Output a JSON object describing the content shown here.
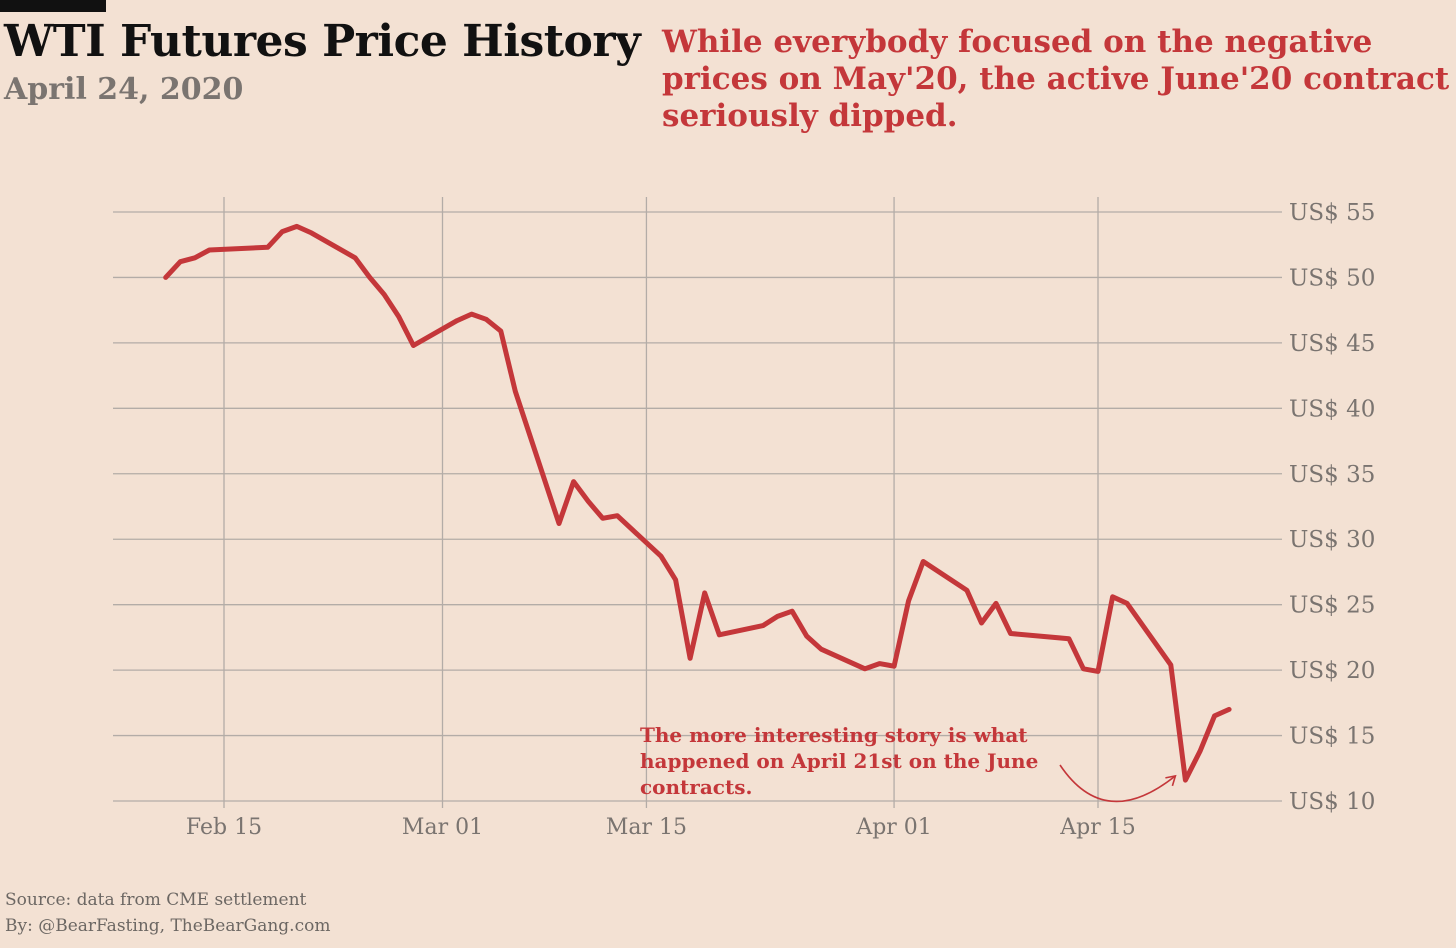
{
  "header": {
    "title": "WTI Futures Price History",
    "subtitle": "April 24, 2020",
    "headline": "While everybody focused on the negative prices on May'20, the active June'20 contract seriously dipped."
  },
  "footer": {
    "source": "Source: data from CME settlement",
    "byline": "By: @BearFasting, TheBearGang.com"
  },
  "colors": {
    "background": "#f3e1d3",
    "line": "#c4373a",
    "grid": "#b3aca7",
    "tick_text": "#7a7470"
  },
  "chart_data": {
    "type": "line",
    "title": "WTI Futures Price History",
    "subtitle": "April 24, 2020",
    "xlabel": "",
    "ylabel": "",
    "ylim": [
      10,
      55
    ],
    "xlim": [
      "2020-02-10",
      "2020-04-27"
    ],
    "y_axis_position": "right",
    "grid": true,
    "y_ticks": [
      {
        "value": 10,
        "label": "US$ 10"
      },
      {
        "value": 15,
        "label": "US$ 15"
      },
      {
        "value": 20,
        "label": "US$ 20"
      },
      {
        "value": 25,
        "label": "US$ 25"
      },
      {
        "value": 30,
        "label": "US$ 30"
      },
      {
        "value": 35,
        "label": "US$ 35"
      },
      {
        "value": 40,
        "label": "US$ 40"
      },
      {
        "value": 45,
        "label": "US$ 45"
      },
      {
        "value": 50,
        "label": "US$ 50"
      },
      {
        "value": 55,
        "label": "US$ 55"
      }
    ],
    "x_ticks": [
      {
        "value": "2020-02-15",
        "label": "Feb 15"
      },
      {
        "value": "2020-03-01",
        "label": "Mar 01"
      },
      {
        "value": "2020-03-15",
        "label": "Mar 15"
      },
      {
        "value": "2020-04-01",
        "label": "Apr 01"
      },
      {
        "value": "2020-04-15",
        "label": "Apr 15"
      }
    ],
    "series": [
      {
        "name": "",
        "points": [
          {
            "x": "2020-02-11",
            "y": 50.0
          },
          {
            "x": "2020-02-12",
            "y": 51.2
          },
          {
            "x": "2020-02-13",
            "y": 51.5
          },
          {
            "x": "2020-02-14",
            "y": 52.1
          },
          {
            "x": "2020-02-18",
            "y": 52.3
          },
          {
            "x": "2020-02-19",
            "y": 53.5
          },
          {
            "x": "2020-02-20",
            "y": 53.9
          },
          {
            "x": "2020-02-21",
            "y": 53.4
          },
          {
            "x": "2020-02-24",
            "y": 51.5
          },
          {
            "x": "2020-02-25",
            "y": 50.0
          },
          {
            "x": "2020-02-26",
            "y": 48.7
          },
          {
            "x": "2020-02-27",
            "y": 47.0
          },
          {
            "x": "2020-02-28",
            "y": 44.8
          },
          {
            "x": "2020-03-02",
            "y": 46.7
          },
          {
            "x": "2020-03-03",
            "y": 47.2
          },
          {
            "x": "2020-03-04",
            "y": 46.8
          },
          {
            "x": "2020-03-05",
            "y": 45.9
          },
          {
            "x": "2020-03-06",
            "y": 41.3
          },
          {
            "x": "2020-03-09",
            "y": 31.2
          },
          {
            "x": "2020-03-10",
            "y": 34.4
          },
          {
            "x": "2020-03-11",
            "y": 32.9
          },
          {
            "x": "2020-03-12",
            "y": 31.6
          },
          {
            "x": "2020-03-13",
            "y": 31.8
          },
          {
            "x": "2020-03-16",
            "y": 28.7
          },
          {
            "x": "2020-03-17",
            "y": 26.9
          },
          {
            "x": "2020-03-18",
            "y": 20.9
          },
          {
            "x": "2020-03-19",
            "y": 25.9
          },
          {
            "x": "2020-03-20",
            "y": 22.7
          },
          {
            "x": "2020-03-23",
            "y": 23.4
          },
          {
            "x": "2020-03-24",
            "y": 24.1
          },
          {
            "x": "2020-03-25",
            "y": 24.5
          },
          {
            "x": "2020-03-26",
            "y": 22.6
          },
          {
            "x": "2020-03-27",
            "y": 21.6
          },
          {
            "x": "2020-03-30",
            "y": 20.1
          },
          {
            "x": "2020-03-31",
            "y": 20.5
          },
          {
            "x": "2020-04-01",
            "y": 20.3
          },
          {
            "x": "2020-04-02",
            "y": 25.3
          },
          {
            "x": "2020-04-03",
            "y": 28.3
          },
          {
            "x": "2020-04-06",
            "y": 26.1
          },
          {
            "x": "2020-04-07",
            "y": 23.6
          },
          {
            "x": "2020-04-08",
            "y": 25.1
          },
          {
            "x": "2020-04-09",
            "y": 22.8
          },
          {
            "x": "2020-04-13",
            "y": 22.4
          },
          {
            "x": "2020-04-14",
            "y": 20.1
          },
          {
            "x": "2020-04-15",
            "y": 19.9
          },
          {
            "x": "2020-04-16",
            "y": 25.6
          },
          {
            "x": "2020-04-17",
            "y": 25.1
          },
          {
            "x": "2020-04-20",
            "y": 20.4
          },
          {
            "x": "2020-04-21",
            "y": 11.6
          },
          {
            "x": "2020-04-22",
            "y": 13.8
          },
          {
            "x": "2020-04-23",
            "y": 16.5
          },
          {
            "x": "2020-04-24",
            "y": 17.0
          }
        ]
      }
    ],
    "annotations": [
      {
        "text_lines": [
          "The more interesting story is what",
          "happened on April 21st on the June",
          "contracts."
        ],
        "arrow_target": {
          "x": "2020-04-21",
          "y": 12.3
        }
      }
    ]
  }
}
